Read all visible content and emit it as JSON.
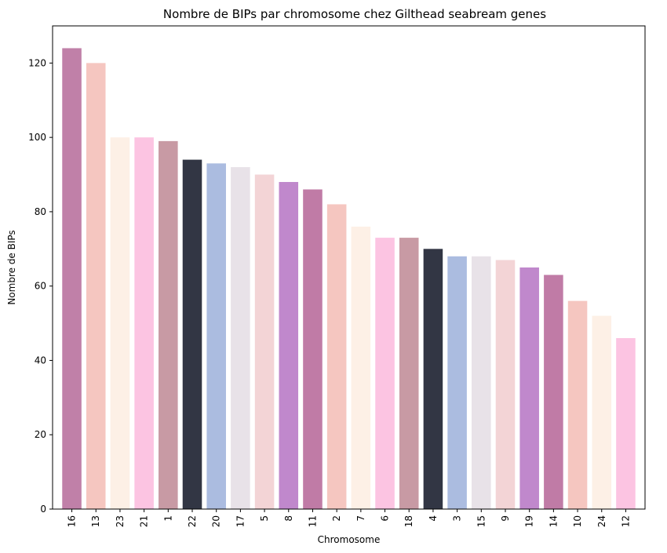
{
  "chart_data": {
    "type": "bar",
    "title": "Nombre de BIPs par chromosome chez Gilthead seabream genes",
    "xlabel": "Chromosome",
    "ylabel": "Nombre de BIPs",
    "ylim": [
      0,
      130
    ],
    "yticks": [
      0,
      20,
      40,
      60,
      80,
      100,
      120
    ],
    "grid": false,
    "categories": [
      "16",
      "13",
      "23",
      "21",
      "1",
      "22",
      "20",
      "17",
      "5",
      "8",
      "11",
      "2",
      "7",
      "6",
      "18",
      "4",
      "3",
      "15",
      "9",
      "19",
      "14",
      "10",
      "24",
      "12"
    ],
    "values": [
      124,
      120,
      100,
      100,
      99,
      94,
      93,
      92,
      90,
      88,
      86,
      82,
      76,
      73,
      73,
      70,
      68,
      68,
      67,
      65,
      63,
      56,
      52,
      46
    ],
    "colors": [
      "#c080a8",
      "#f5c6c0",
      "#fdf0e6",
      "#fcc4e2",
      "#c89aa4",
      "#323644",
      "#abbce0",
      "#e8e2e8",
      "#f3d4d6",
      "#c088cc",
      "#c07ba6",
      "#f5c6c0",
      "#fdf0e6",
      "#fcc4e2",
      "#c89aa4",
      "#323644",
      "#abbce0",
      "#e8e2e8",
      "#f3d4d6",
      "#c088cc",
      "#c07ba6",
      "#f5c6c0",
      "#fdf0e6",
      "#fcc4e2"
    ]
  }
}
